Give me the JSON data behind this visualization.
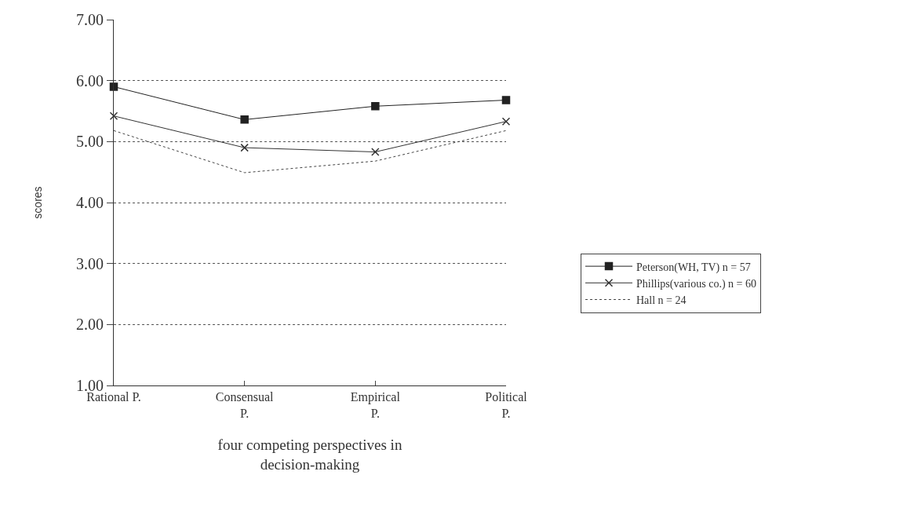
{
  "chart_data": {
    "type": "line",
    "xlabel": "four competing perspectives in decision-making",
    "ylabel": "scores",
    "categories": [
      "Rational P.",
      "Consensual P.",
      "Empirical P.",
      "Political P."
    ],
    "series": [
      {
        "name": "Peterson(WH, TV) n = 57",
        "color": "#222222",
        "values": [
          5.9,
          5.36,
          5.58,
          5.68
        ],
        "marker": "square",
        "line_style": "solid"
      },
      {
        "name": "Phillips(various co.) n = 60",
        "color": "#333333",
        "values": [
          5.42,
          4.9,
          4.83,
          5.33
        ],
        "marker": "cross",
        "line_style": "solid"
      },
      {
        "name": "Hall n = 24",
        "color": "#444444",
        "values": [
          5.18,
          4.49,
          4.68,
          5.18
        ],
        "marker": "none",
        "line_style": "dotted"
      }
    ],
    "ylim": [
      1.0,
      7.0
    ],
    "yticks": [
      {
        "value": 1,
        "label": "1.00"
      },
      {
        "value": 2,
        "label": "2.00"
      },
      {
        "value": 3,
        "label": "3.00"
      },
      {
        "value": 4,
        "label": "4.00"
      },
      {
        "value": 5,
        "label": "5.00"
      },
      {
        "value": 6,
        "label": "6.00"
      },
      {
        "value": 7,
        "label": "7.00"
      }
    ],
    "grid": "y",
    "legend": "right"
  }
}
